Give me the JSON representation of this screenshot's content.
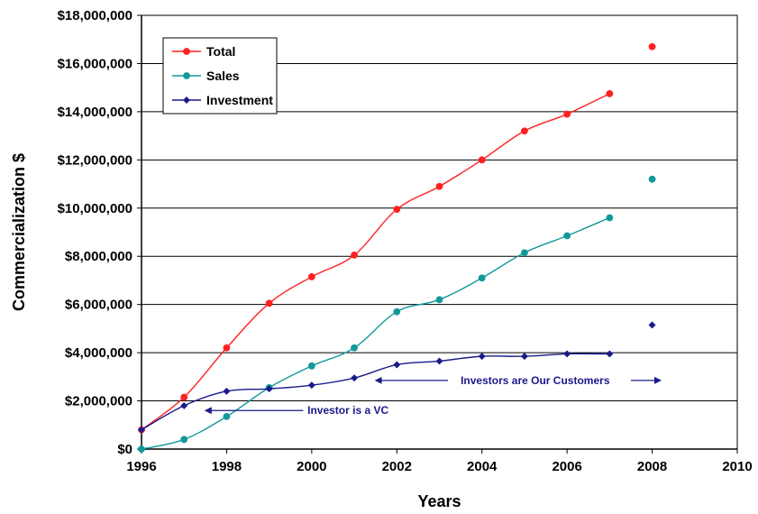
{
  "chart_data": {
    "type": "line",
    "title": "",
    "xlabel": "Years",
    "ylabel": "Commercialization $",
    "xlim": [
      1996,
      2010
    ],
    "ylim": [
      0,
      18000000
    ],
    "x_ticks": [
      1996,
      1998,
      2000,
      2002,
      2004,
      2006,
      2008,
      2010
    ],
    "x_tick_labels": [
      "1996",
      "1998",
      "2000",
      "2002",
      "2004",
      "2006",
      "2008",
      "2010"
    ],
    "y_ticks": [
      0,
      2000000,
      4000000,
      6000000,
      8000000,
      10000000,
      12000000,
      14000000,
      16000000,
      18000000
    ],
    "y_tick_labels": [
      "$0",
      "$2,000,000",
      "$4,000,000",
      "$6,000,000",
      "$8,000,000",
      "$10,000,000",
      "$12,000,000",
      "$14,000,000",
      "$16,000,000",
      "$18,000,000"
    ],
    "grid": "horizontal",
    "legend_position": "top-left",
    "series": [
      {
        "name": "Total",
        "color": "#ff2020",
        "marker": "circle",
        "x": [
          1996,
          1997,
          1998,
          1999,
          2000,
          2001,
          2002,
          2003,
          2004,
          2005,
          2006,
          2007
        ],
        "values": [
          800000,
          2150000,
          4200000,
          6050000,
          7150000,
          8050000,
          9950000,
          10900000,
          12000000,
          13200000,
          13900000,
          14750000
        ],
        "projection": {
          "x": 2008,
          "value": 16700000
        }
      },
      {
        "name": "Sales",
        "color": "#119999",
        "marker": "circle",
        "x": [
          1996,
          1997,
          1998,
          1999,
          2000,
          2001,
          2002,
          2003,
          2004,
          2005,
          2006,
          2007
        ],
        "values": [
          0,
          400000,
          1350000,
          2550000,
          3450000,
          4200000,
          5700000,
          6200000,
          7100000,
          8150000,
          8850000,
          9600000
        ],
        "projection": {
          "x": 2008,
          "value": 11200000
        }
      },
      {
        "name": "Investment",
        "color": "#1a1a8a",
        "marker": "diamond",
        "x": [
          1996,
          1997,
          1998,
          1999,
          2000,
          2001,
          2002,
          2003,
          2004,
          2005,
          2006,
          2007
        ],
        "values": [
          800000,
          1800000,
          2400000,
          2500000,
          2650000,
          2950000,
          3500000,
          3650000,
          3850000,
          3850000,
          3950000,
          3950000
        ],
        "projection": {
          "x": 2008,
          "value": 5150000
        }
      }
    ],
    "annotations": [
      {
        "text": "Investor is a VC",
        "color": "#1a1a8a",
        "text_x": 1999.9,
        "text_y": 1600000,
        "arrows": [
          {
            "from_x": 1999.8,
            "to_x": 1997.5,
            "y": 1600000
          }
        ]
      },
      {
        "text": "Investors are Our Customers",
        "color": "#1a1a8a",
        "text_x": 2003.5,
        "text_y": 2850000,
        "arrows": [
          {
            "from_x": 2003.2,
            "to_x": 2001.5,
            "y": 2850000
          },
          {
            "from_x": 2007.5,
            "to_x": 2008.2,
            "y": 2850000
          }
        ]
      }
    ]
  }
}
